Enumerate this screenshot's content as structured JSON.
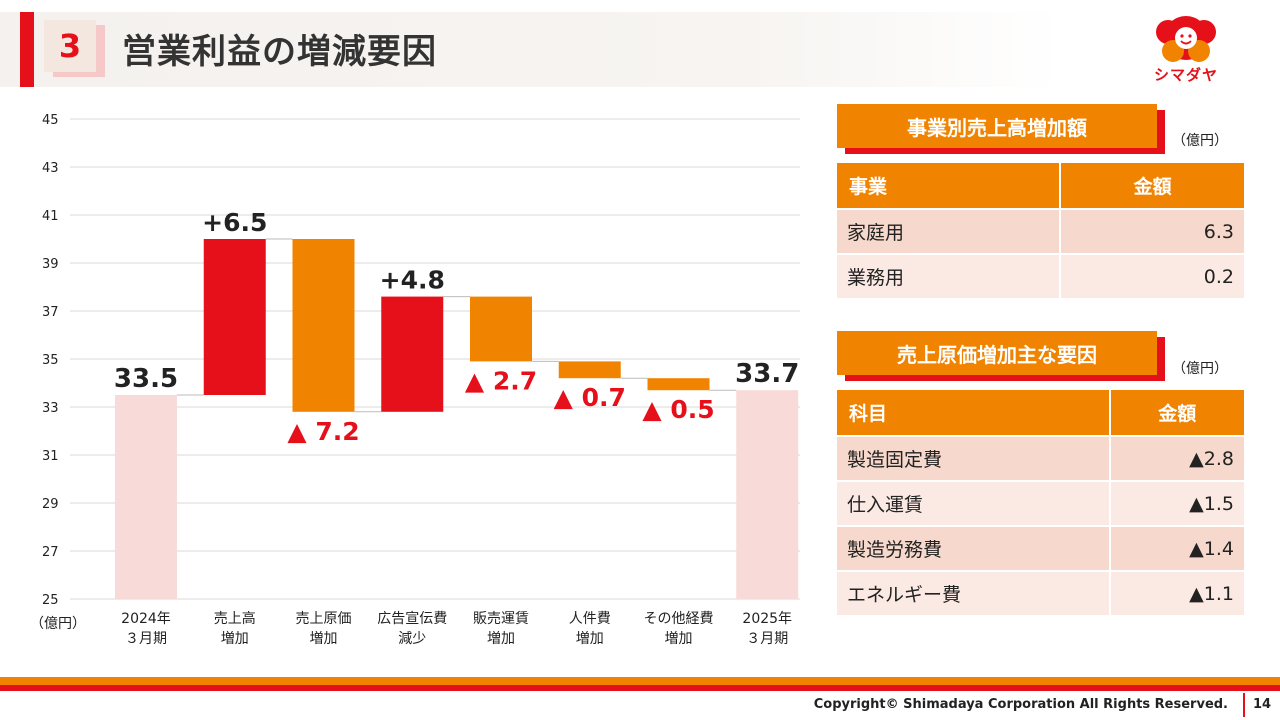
{
  "header": {
    "section_number": "3",
    "title": "営業利益の増減要因",
    "logo_text": "シマダヤ"
  },
  "colors": {
    "accent_red": "#e5101a",
    "accent_orange": "#f08300",
    "total_bar": "#f8dad8"
  },
  "chart_data": {
    "type": "waterfall",
    "unit_label": "（億円）",
    "ylim": [
      25,
      45
    ],
    "yticks": [
      25,
      27,
      29,
      31,
      33,
      35,
      37,
      39,
      41,
      43,
      45
    ],
    "grid": true,
    "bars": [
      {
        "label_lines": [
          "2024年",
          "３月期"
        ],
        "kind": "total",
        "start": 0,
        "end": 33.5,
        "value_label": "33.5",
        "label_pos": "top"
      },
      {
        "label_lines": [
          "売上高",
          "増加"
        ],
        "kind": "increase",
        "start": 33.5,
        "end": 40.0,
        "value_label": "+6.5",
        "label_pos": "top"
      },
      {
        "label_lines": [
          "売上原価",
          "増加"
        ],
        "kind": "decrease",
        "start": 40.0,
        "end": 32.8,
        "value_label": "▲ 7.2",
        "label_pos": "bottom"
      },
      {
        "label_lines": [
          "広告宣伝費",
          "減少"
        ],
        "kind": "increase",
        "start": 32.8,
        "end": 37.6,
        "value_label": "+4.8",
        "label_pos": "top"
      },
      {
        "label_lines": [
          "販売運賃",
          "増加"
        ],
        "kind": "decrease",
        "start": 37.6,
        "end": 34.9,
        "value_label": "▲ 2.7",
        "label_pos": "bottom"
      },
      {
        "label_lines": [
          "人件費",
          "増加"
        ],
        "kind": "decrease",
        "start": 34.9,
        "end": 34.2,
        "value_label": "▲ 0.7",
        "label_pos": "bottom"
      },
      {
        "label_lines": [
          "その他経費",
          "増加"
        ],
        "kind": "decrease",
        "start": 34.2,
        "end": 33.7,
        "value_label": "▲ 0.5",
        "label_pos": "bottom"
      },
      {
        "label_lines": [
          "2025年",
          "３月期"
        ],
        "kind": "total",
        "start": 0,
        "end": 33.7,
        "value_label": "33.7",
        "label_pos": "top"
      }
    ]
  },
  "panel1": {
    "title": "事業別売上高増加額",
    "unit": "（億円）",
    "headers": [
      "事業",
      "金額"
    ],
    "rows": [
      {
        "name": "家庭用",
        "amount": "6.3"
      },
      {
        "name": "業務用",
        "amount": "0.2"
      }
    ]
  },
  "panel2": {
    "title": "売上原価増加主な要因",
    "unit": "（億円）",
    "headers": [
      "科目",
      "金額"
    ],
    "rows": [
      {
        "name": "製造固定費",
        "amount": "▲2.8"
      },
      {
        "name": "仕入運賃",
        "amount": "▲1.5"
      },
      {
        "name": "製造労務費",
        "amount": "▲1.4"
      },
      {
        "name": "エネルギー費",
        "amount": "▲1.1"
      }
    ]
  },
  "footer": {
    "copyright": "Copyright© Shimadaya Corporation All Rights Reserved.",
    "page_number": "14"
  }
}
